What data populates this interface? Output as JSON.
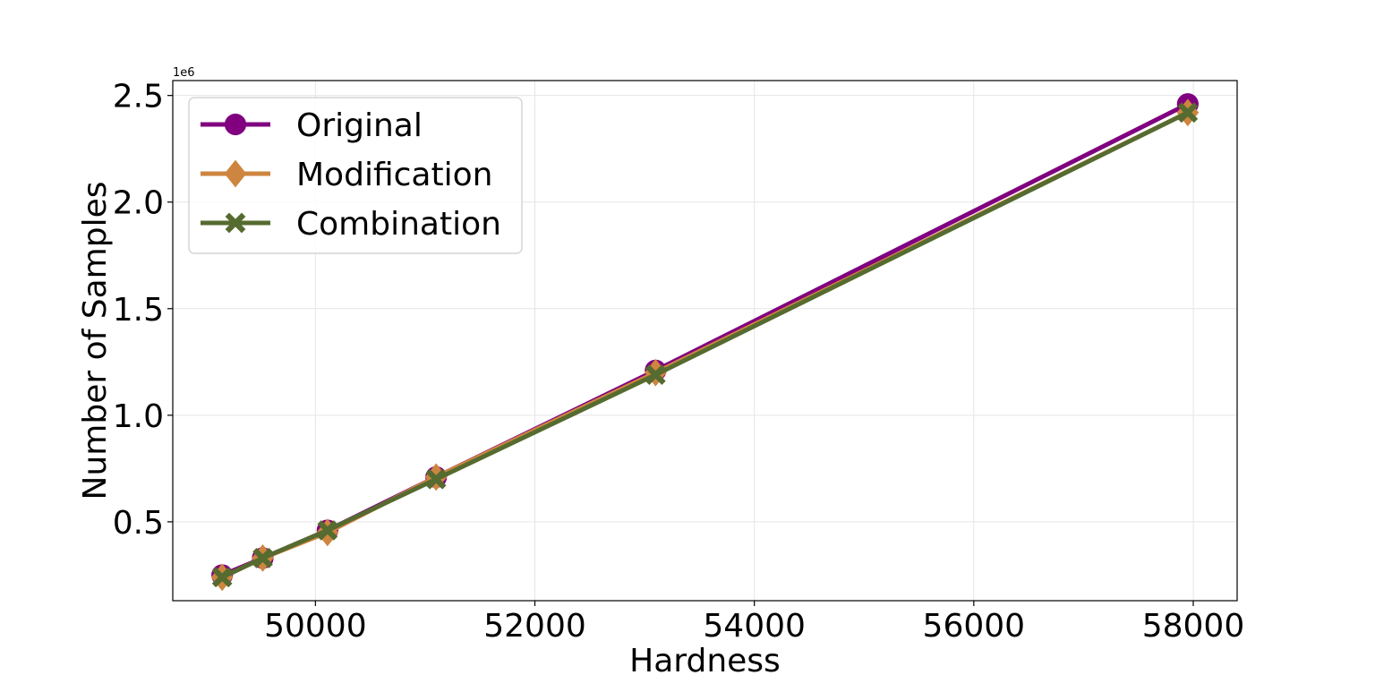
{
  "chart_data": {
    "type": "line",
    "xlabel": "Hardness",
    "ylabel": "Number of Samples",
    "y_offset_label": "1e6",
    "xlim": [
      48700,
      58400
    ],
    "ylim": [
      0.13,
      2.57
    ],
    "x_ticks": [
      50000,
      52000,
      54000,
      56000,
      58000
    ],
    "y_ticks": [
      0.5,
      1.0,
      1.5,
      2.0,
      2.5
    ],
    "x_tick_labels": [
      "50000",
      "52000",
      "54000",
      "56000",
      "58000"
    ],
    "y_tick_labels": [
      "0.5",
      "1.0",
      "1.5",
      "2.0",
      "2.5"
    ],
    "grid": true,
    "legend_position": "upper-left",
    "series": [
      {
        "name": "Original",
        "color": "#800080",
        "marker": "circle",
        "x": [
          49150,
          49520,
          50110,
          51100,
          53100,
          57950
        ],
        "y": [
          0.25,
          0.33,
          0.46,
          0.71,
          1.21,
          2.46
        ]
      },
      {
        "name": "Modification",
        "color": "#CD853F",
        "marker": "diamond",
        "x": [
          49150,
          49520,
          50110,
          51100,
          53100,
          57950
        ],
        "y": [
          0.24,
          0.33,
          0.45,
          0.71,
          1.2,
          2.42
        ]
      },
      {
        "name": "Combination",
        "color": "#556B2F",
        "marker": "x",
        "x": [
          49150,
          49520,
          50110,
          51100,
          53100,
          57950
        ],
        "y": [
          0.24,
          0.33,
          0.46,
          0.7,
          1.19,
          2.42
        ]
      }
    ]
  }
}
